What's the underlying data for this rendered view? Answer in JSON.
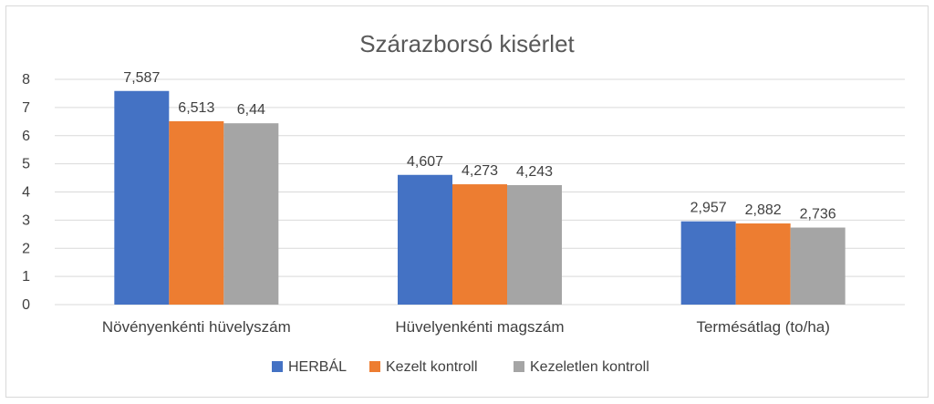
{
  "chart_data": {
    "type": "bar",
    "title": "Szárazborsó kisérlet",
    "categories": [
      "Növényenkénti hüvelyszám",
      "Hüvelyenkénti magszám",
      "Termésátlag (to/ha)"
    ],
    "series": [
      {
        "name": "HERBÁL",
        "color": "#4472c4",
        "values": [
          7.587,
          4.607,
          2.957
        ],
        "labels": [
          "7,587",
          "4,607",
          "2,957"
        ]
      },
      {
        "name": "Kezelt kontroll",
        "color": "#ed7d31",
        "values": [
          6.513,
          4.273,
          2.882
        ],
        "labels": [
          "6,513",
          "4,273",
          "2,882"
        ]
      },
      {
        "name": "Kezeletlen kontroll",
        "color": "#a5a5a5",
        "values": [
          6.44,
          4.243,
          2.736
        ],
        "labels": [
          "6,44",
          "4,243",
          "2,736"
        ]
      }
    ],
    "ylim": [
      0,
      8
    ],
    "yticks": [
      "0",
      "1",
      "2",
      "3",
      "4",
      "5",
      "6",
      "7",
      "8"
    ],
    "grid": true,
    "legend": "bottom"
  }
}
